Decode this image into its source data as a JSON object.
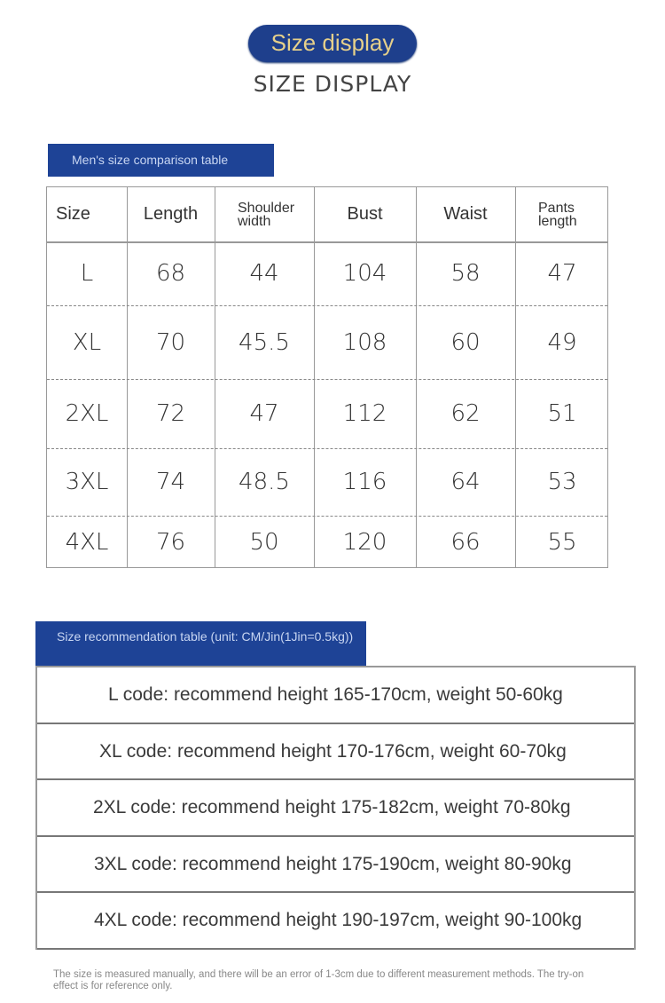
{
  "header": {
    "pill": "Size display",
    "subtitle": "SIZE DISPLAY"
  },
  "size_table": {
    "title": "Men's size comparison table",
    "columns": [
      "Size",
      "Length",
      "Shoulder width",
      "Bust",
      "Waist",
      "Pants length"
    ],
    "rows": [
      [
        "L",
        "68",
        "44",
        "104",
        "58",
        "47"
      ],
      [
        "XL",
        "70",
        "45.5",
        "108",
        "60",
        "49"
      ],
      [
        "2XL",
        "72",
        "47",
        "112",
        "62",
        "51"
      ],
      [
        "3XL",
        "74",
        "48.5",
        "116",
        "64",
        "53"
      ],
      [
        "4XL",
        "76",
        "50",
        "120",
        "66",
        "55"
      ]
    ]
  },
  "recommendation": {
    "title": "Size recommendation table (unit: CM/Jin(1Jin=0.5kg))",
    "rows": [
      "L code: recommend height 165-170cm, weight 50-60kg",
      "XL code: recommend height 170-176cm, weight 60-70kg",
      "2XL code: recommend height 175-182cm, weight 70-80kg",
      "3XL code: recommend height 175-190cm, weight 80-90kg",
      "4XL code: recommend height 190-197cm, weight 90-100kg"
    ]
  },
  "note": "The size is measured manually, and there will be an error of 1-3cm due to different measurement methods. The try-on effect is for reference only.",
  "colors": {
    "banner": "#1e4396",
    "pill_text": "#e6d08a"
  }
}
